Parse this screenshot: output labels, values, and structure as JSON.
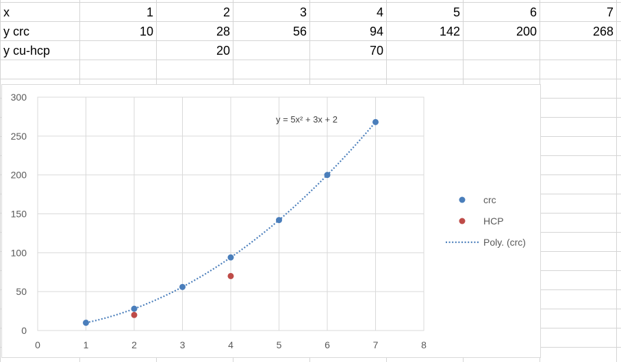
{
  "sheet": {
    "rows": [
      {
        "label": "x",
        "values": [
          "1",
          "2",
          "3",
          "4",
          "5",
          "6",
          "7"
        ]
      },
      {
        "label": "y crc",
        "values": [
          "10",
          "28",
          "56",
          "94",
          "142",
          "200",
          "268"
        ]
      },
      {
        "label": "y cu-hcp",
        "values": [
          "",
          "20",
          "",
          "70",
          "",
          "",
          ""
        ]
      }
    ]
  },
  "chart_data": {
    "type": "scatter",
    "title": "",
    "xlabel": "",
    "ylabel": "",
    "xlim": [
      0,
      8
    ],
    "ylim": [
      0,
      300
    ],
    "x_ticks": [
      0,
      1,
      2,
      3,
      4,
      5,
      6,
      7,
      8
    ],
    "y_ticks": [
      0,
      50,
      100,
      150,
      200,
      250,
      300
    ],
    "grid": true,
    "legend_position": "right",
    "series": [
      {
        "name": "crc",
        "color": "#4a7ebb",
        "points": [
          [
            1,
            10
          ],
          [
            2,
            28
          ],
          [
            3,
            56
          ],
          [
            4,
            94
          ],
          [
            5,
            142
          ],
          [
            6,
            200
          ],
          [
            7,
            268
          ]
        ]
      },
      {
        "name": "HCP",
        "color": "#be4b48",
        "points": [
          [
            2,
            20
          ],
          [
            4,
            70
          ]
        ]
      }
    ],
    "trendline": {
      "name": "Poly. (crc)",
      "type": "polynomial",
      "order": 2,
      "coefficients": [
        5,
        3,
        2
      ],
      "x_range": [
        1,
        7
      ],
      "color": "#4a7ebb",
      "style": "dotted",
      "equation_label": "y = 5x² + 3x + 2"
    }
  }
}
